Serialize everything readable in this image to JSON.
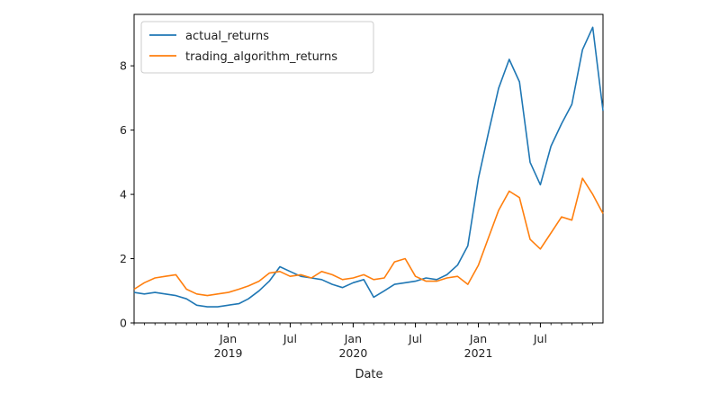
{
  "chart_data": {
    "type": "line",
    "xlabel": "Date",
    "ylabel": "",
    "xlim": [
      "2018-04-01",
      "2021-12-31"
    ],
    "ylim": [
      0,
      9.6
    ],
    "grid": false,
    "legend_position": "top-left",
    "y_ticks": [
      0,
      2,
      4,
      6,
      8
    ],
    "x_ticks": [
      {
        "date": "2019-01-01",
        "label": "Jan",
        "sublabel": "2019"
      },
      {
        "date": "2019-07-01",
        "label": "Jul",
        "sublabel": ""
      },
      {
        "date": "2020-01-01",
        "label": "Jan",
        "sublabel": "2020"
      },
      {
        "date": "2020-07-01",
        "label": "Jul",
        "sublabel": ""
      },
      {
        "date": "2021-01-01",
        "label": "Jan",
        "sublabel": "2021"
      },
      {
        "date": "2021-07-01",
        "label": "Jul",
        "sublabel": ""
      }
    ],
    "series": [
      {
        "name": "actual_returns",
        "color": "#1f77b4",
        "x": [
          "2018-04-01",
          "2018-05-01",
          "2018-06-01",
          "2018-07-01",
          "2018-08-01",
          "2018-09-01",
          "2018-10-01",
          "2018-11-01",
          "2018-12-01",
          "2019-01-01",
          "2019-02-01",
          "2019-03-01",
          "2019-04-01",
          "2019-05-01",
          "2019-06-01",
          "2019-07-01",
          "2019-08-01",
          "2019-09-01",
          "2019-10-01",
          "2019-11-01",
          "2019-12-01",
          "2020-01-01",
          "2020-02-01",
          "2020-03-01",
          "2020-04-01",
          "2020-05-01",
          "2020-06-01",
          "2020-07-01",
          "2020-08-01",
          "2020-09-01",
          "2020-10-01",
          "2020-11-01",
          "2020-12-01",
          "2021-01-01",
          "2021-02-01",
          "2021-03-01",
          "2021-04-01",
          "2021-05-01",
          "2021-06-01",
          "2021-07-01",
          "2021-08-01",
          "2021-09-01",
          "2021-10-01",
          "2021-11-01",
          "2021-12-01",
          "2021-12-31"
        ],
        "y": [
          0.95,
          0.9,
          0.95,
          0.9,
          0.85,
          0.75,
          0.55,
          0.5,
          0.5,
          0.55,
          0.6,
          0.75,
          1.0,
          1.3,
          1.75,
          1.6,
          1.45,
          1.4,
          1.35,
          1.2,
          1.1,
          1.25,
          1.35,
          0.8,
          1.0,
          1.2,
          1.25,
          1.3,
          1.4,
          1.35,
          1.5,
          1.8,
          2.4,
          4.5,
          6.0,
          7.3,
          8.2,
          7.5,
          5.0,
          4.3,
          5.5,
          6.2,
          6.8,
          8.5,
          9.2,
          6.6
        ]
      },
      {
        "name": "trading_algorithm_returns",
        "color": "#ff7f0e",
        "x": [
          "2018-04-01",
          "2018-05-01",
          "2018-06-01",
          "2018-07-01",
          "2018-08-01",
          "2018-09-01",
          "2018-10-01",
          "2018-11-01",
          "2018-12-01",
          "2019-01-01",
          "2019-02-01",
          "2019-03-01",
          "2019-04-01",
          "2019-05-01",
          "2019-06-01",
          "2019-07-01",
          "2019-08-01",
          "2019-09-01",
          "2019-10-01",
          "2019-11-01",
          "2019-12-01",
          "2020-01-01",
          "2020-02-01",
          "2020-03-01",
          "2020-04-01",
          "2020-05-01",
          "2020-06-01",
          "2020-07-01",
          "2020-08-01",
          "2020-09-01",
          "2020-10-01",
          "2020-11-01",
          "2020-12-01",
          "2021-01-01",
          "2021-02-01",
          "2021-03-01",
          "2021-04-01",
          "2021-05-01",
          "2021-06-01",
          "2021-07-01",
          "2021-08-01",
          "2021-09-01",
          "2021-10-01",
          "2021-11-01",
          "2021-12-01",
          "2021-12-31"
        ],
        "y": [
          1.05,
          1.25,
          1.4,
          1.45,
          1.5,
          1.05,
          0.9,
          0.85,
          0.9,
          0.95,
          1.05,
          1.15,
          1.3,
          1.55,
          1.6,
          1.45,
          1.5,
          1.4,
          1.6,
          1.5,
          1.35,
          1.4,
          1.5,
          1.35,
          1.4,
          1.9,
          2.0,
          1.45,
          1.3,
          1.3,
          1.4,
          1.45,
          1.2,
          1.8,
          2.7,
          3.5,
          4.1,
          3.9,
          2.6,
          2.3,
          2.8,
          3.3,
          3.2,
          4.5,
          4.0,
          3.4
        ]
      }
    ]
  }
}
